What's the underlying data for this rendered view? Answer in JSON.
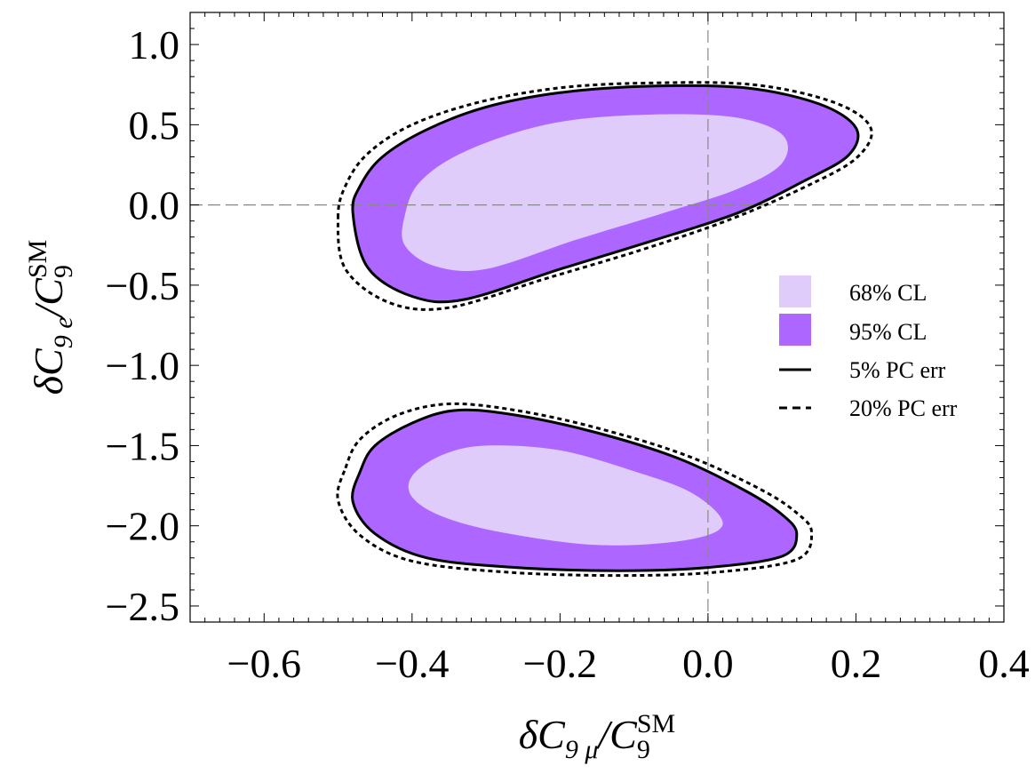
{
  "chart_data": {
    "type": "contour",
    "title": "",
    "xlabel": {
      "main": "δC",
      "sub": "9 μ",
      "slash": "/C",
      "sub2": "9",
      "sup": "SM"
    },
    "ylabel": {
      "main": "δC",
      "sub": "9 e",
      "slash": "/C",
      "sub2": "9",
      "sup": "SM"
    },
    "xlim": [
      -0.7,
      0.4
    ],
    "ylim": [
      -2.6,
      1.2
    ],
    "x_ticks": [
      -0.6,
      -0.4,
      -0.2,
      0.0,
      0.2,
      0.4
    ],
    "x_tick_labels": [
      "−0.6",
      "−0.4",
      "−0.2",
      "0.0",
      "0.2",
      "0.4"
    ],
    "y_ticks": [
      1.0,
      0.5,
      0.0,
      -0.5,
      -1.0,
      -1.5,
      -2.0,
      -2.5
    ],
    "y_tick_labels": [
      "1.0",
      "0.5",
      "0.0",
      "−0.5",
      "−1.0",
      "−1.5",
      "−2.0",
      "−2.5"
    ],
    "reference_lines": {
      "x": 0.0,
      "y": 0.0,
      "style": "dashed gray"
    },
    "colors": {
      "cl68": "#e0ccfb",
      "cl95": "#ad66ff",
      "frame": "#000000",
      "ref": "#888888"
    },
    "legend": {
      "position": "right-middle",
      "entries": [
        {
          "label": "68% CL",
          "kind": "fill",
          "color": "#e0ccfb"
        },
        {
          "label": "95% CL",
          "kind": "fill",
          "color": "#ad66ff"
        },
        {
          "label": "5% PC err",
          "kind": "solid-line"
        },
        {
          "label": "20% PC err",
          "kind": "dashed-line"
        }
      ]
    },
    "regions": [
      {
        "name": "upper",
        "cl95": [
          [
            -0.48,
            -0.05
          ],
          [
            -0.47,
            0.12
          ],
          [
            -0.44,
            0.3
          ],
          [
            -0.38,
            0.47
          ],
          [
            -0.3,
            0.61
          ],
          [
            -0.2,
            0.7
          ],
          [
            -0.08,
            0.74
          ],
          [
            0.05,
            0.73
          ],
          [
            0.15,
            0.63
          ],
          [
            0.2,
            0.48
          ],
          [
            0.19,
            0.31
          ],
          [
            0.13,
            0.15
          ],
          [
            0.04,
            -0.05
          ],
          [
            -0.08,
            -0.23
          ],
          [
            -0.2,
            -0.4
          ],
          [
            -0.33,
            -0.59
          ],
          [
            -0.4,
            -0.57
          ],
          [
            -0.46,
            -0.39
          ]
        ],
        "cl68": [
          [
            -0.41,
            -0.07
          ],
          [
            -0.39,
            0.14
          ],
          [
            -0.33,
            0.33
          ],
          [
            -0.22,
            0.5
          ],
          [
            -0.1,
            0.56
          ],
          [
            0.03,
            0.55
          ],
          [
            0.1,
            0.44
          ],
          [
            0.1,
            0.26
          ],
          [
            0.04,
            0.1
          ],
          [
            -0.06,
            -0.05
          ],
          [
            -0.18,
            -0.22
          ],
          [
            -0.3,
            -0.4
          ],
          [
            -0.37,
            -0.38
          ],
          [
            -0.41,
            -0.25
          ]
        ],
        "pc5": [
          [
            -0.48,
            -0.05
          ],
          [
            -0.47,
            0.12
          ],
          [
            -0.44,
            0.3
          ],
          [
            -0.38,
            0.47
          ],
          [
            -0.3,
            0.61
          ],
          [
            -0.2,
            0.7
          ],
          [
            -0.08,
            0.74
          ],
          [
            0.05,
            0.73
          ],
          [
            0.15,
            0.63
          ],
          [
            0.2,
            0.48
          ],
          [
            0.19,
            0.31
          ],
          [
            0.13,
            0.15
          ],
          [
            0.04,
            -0.05
          ],
          [
            -0.08,
            -0.23
          ],
          [
            -0.2,
            -0.4
          ],
          [
            -0.33,
            -0.59
          ],
          [
            -0.4,
            -0.57
          ],
          [
            -0.46,
            -0.39
          ]
        ],
        "pc20": [
          [
            -0.5,
            -0.08
          ],
          [
            -0.49,
            0.12
          ],
          [
            -0.46,
            0.32
          ],
          [
            -0.4,
            0.5
          ],
          [
            -0.31,
            0.64
          ],
          [
            -0.2,
            0.73
          ],
          [
            -0.08,
            0.76
          ],
          [
            0.06,
            0.75
          ],
          [
            0.17,
            0.64
          ],
          [
            0.22,
            0.48
          ],
          [
            0.2,
            0.29
          ],
          [
            0.13,
            0.11
          ],
          [
            0.03,
            -0.09
          ],
          [
            -0.09,
            -0.28
          ],
          [
            -0.22,
            -0.46
          ],
          [
            -0.35,
            -0.64
          ],
          [
            -0.43,
            -0.61
          ],
          [
            -0.49,
            -0.4
          ]
        ]
      },
      {
        "name": "lower",
        "cl95": [
          [
            -0.47,
            -1.66
          ],
          [
            -0.45,
            -1.5
          ],
          [
            -0.4,
            -1.36
          ],
          [
            -0.34,
            -1.28
          ],
          [
            -0.26,
            -1.31
          ],
          [
            -0.15,
            -1.42
          ],
          [
            -0.04,
            -1.58
          ],
          [
            0.05,
            -1.78
          ],
          [
            0.1,
            -1.93
          ],
          [
            0.12,
            -2.05
          ],
          [
            0.1,
            -2.19
          ],
          [
            0.0,
            -2.26
          ],
          [
            -0.12,
            -2.28
          ],
          [
            -0.26,
            -2.26
          ],
          [
            -0.38,
            -2.2
          ],
          [
            -0.45,
            -2.05
          ],
          [
            -0.48,
            -1.85
          ]
        ],
        "cl68": [
          [
            -0.4,
            -1.69
          ],
          [
            -0.36,
            -1.56
          ],
          [
            -0.3,
            -1.5
          ],
          [
            -0.2,
            -1.53
          ],
          [
            -0.1,
            -1.66
          ],
          [
            -0.02,
            -1.8
          ],
          [
            0.02,
            -1.99
          ],
          [
            -0.03,
            -2.09
          ],
          [
            -0.15,
            -2.12
          ],
          [
            -0.28,
            -2.04
          ],
          [
            -0.36,
            -1.94
          ],
          [
            -0.4,
            -1.82
          ]
        ],
        "pc5": [
          [
            -0.47,
            -1.66
          ],
          [
            -0.45,
            -1.5
          ],
          [
            -0.4,
            -1.36
          ],
          [
            -0.34,
            -1.28
          ],
          [
            -0.26,
            -1.31
          ],
          [
            -0.15,
            -1.42
          ],
          [
            -0.04,
            -1.58
          ],
          [
            0.05,
            -1.78
          ],
          [
            0.1,
            -1.93
          ],
          [
            0.12,
            -2.05
          ],
          [
            0.1,
            -2.19
          ],
          [
            0.0,
            -2.26
          ],
          [
            -0.12,
            -2.28
          ],
          [
            -0.26,
            -2.26
          ],
          [
            -0.38,
            -2.2
          ],
          [
            -0.45,
            -2.05
          ],
          [
            -0.48,
            -1.85
          ]
        ],
        "pc20": [
          [
            -0.49,
            -1.64
          ],
          [
            -0.47,
            -1.46
          ],
          [
            -0.42,
            -1.31
          ],
          [
            -0.35,
            -1.24
          ],
          [
            -0.26,
            -1.28
          ],
          [
            -0.15,
            -1.39
          ],
          [
            -0.03,
            -1.56
          ],
          [
            0.07,
            -1.77
          ],
          [
            0.12,
            -1.92
          ],
          [
            0.14,
            -2.04
          ],
          [
            0.12,
            -2.21
          ],
          [
            0.01,
            -2.29
          ],
          [
            -0.12,
            -2.31
          ],
          [
            -0.27,
            -2.29
          ],
          [
            -0.4,
            -2.22
          ],
          [
            -0.47,
            -2.06
          ],
          [
            -0.5,
            -1.84
          ]
        ]
      }
    ]
  }
}
